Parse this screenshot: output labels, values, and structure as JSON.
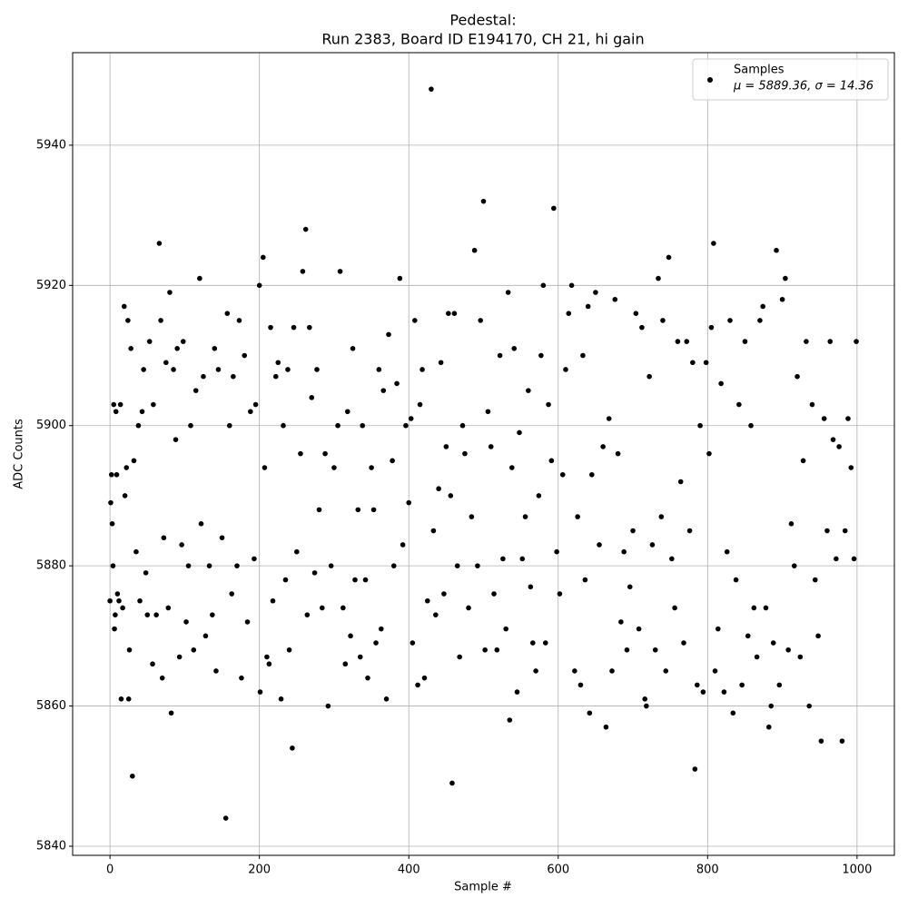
{
  "chart_data": {
    "type": "scatter",
    "title": "Pedestal:",
    "subtitle": "Run 2383, Board ID E194170, CH 21, hi gain",
    "xlabel": "Sample #",
    "ylabel": "ADC Counts",
    "annotation": "μ = 5889.36, σ = 14.36",
    "xlim": [
      -50,
      1050
    ],
    "ylim": [
      5838.7,
      5953.2
    ],
    "xticks": [
      0,
      200,
      400,
      600,
      800,
      1000
    ],
    "yticks": [
      5840,
      5860,
      5880,
      5900,
      5920,
      5940
    ],
    "grid": true,
    "legend": "upper right",
    "series": [
      {
        "name": "Samples",
        "color": "#000000",
        "x": [
          0,
          1,
          2,
          3,
          4,
          5,
          6,
          7,
          8,
          9,
          10,
          12,
          14,
          15,
          17,
          19,
          20,
          22,
          24,
          25,
          26,
          28,
          30,
          32,
          35,
          38,
          40,
          43,
          45,
          48,
          50,
          53,
          57,
          58,
          62,
          66,
          68,
          70,
          72,
          75,
          78,
          80,
          82,
          85,
          88,
          90,
          93,
          96,
          98,
          102,
          105,
          108,
          112,
          115,
          120,
          122,
          125,
          128,
          133,
          137,
          140,
          142,
          145,
          150,
          155,
          157,
          160,
          163,
          165,
          170,
          173,
          176,
          180,
          184,
          188,
          193,
          195,
          200,
          201,
          205,
          207,
          210,
          213,
          215,
          218,
          222,
          225,
          229,
          232,
          235,
          238,
          240,
          244,
          246,
          250,
          255,
          258,
          262,
          264,
          267,
          270,
          274,
          277,
          280,
          284,
          288,
          292,
          296,
          300,
          305,
          308,
          312,
          315,
          318,
          322,
          325,
          328,
          332,
          335,
          338,
          342,
          345,
          350,
          353,
          356,
          360,
          363,
          366,
          370,
          373,
          378,
          380,
          384,
          388,
          392,
          396,
          400,
          403,
          405,
          408,
          412,
          415,
          418,
          421,
          425,
          430,
          433,
          436,
          440,
          443,
          447,
          450,
          453,
          456,
          458,
          461,
          465,
          468,
          472,
          475,
          480,
          484,
          488,
          492,
          496,
          500,
          502,
          506,
          510,
          514,
          518,
          522,
          526,
          530,
          533,
          535,
          538,
          541,
          545,
          548,
          552,
          556,
          560,
          563,
          566,
          570,
          574,
          577,
          580,
          583,
          587,
          591,
          594,
          598,
          602,
          606,
          610,
          614,
          618,
          622,
          626,
          630,
          633,
          636,
          640,
          642,
          645,
          650,
          655,
          660,
          664,
          668,
          672,
          676,
          680,
          684,
          688,
          692,
          696,
          700,
          704,
          708,
          712,
          716,
          718,
          722,
          726,
          730,
          734,
          738,
          740,
          744,
          748,
          752,
          756,
          760,
          764,
          768,
          772,
          776,
          780,
          783,
          786,
          790,
          794,
          798,
          802,
          805,
          808,
          810,
          814,
          818,
          822,
          826,
          830,
          834,
          838,
          842,
          846,
          850,
          854,
          858,
          862,
          866,
          870,
          874,
          878,
          882,
          885,
          888,
          892,
          896,
          900,
          904,
          908,
          912,
          916,
          920,
          924,
          928,
          932,
          936,
          940,
          944,
          948,
          952,
          956,
          960,
          964,
          968,
          972,
          976,
          980,
          984,
          988,
          992,
          996,
          999
        ],
        "values": [
          5875,
          5889,
          5893,
          5886,
          5880,
          5903,
          5871,
          5873,
          5902,
          5893,
          5876,
          5875,
          5903,
          5861,
          5874,
          5917,
          5890,
          5894,
          5915,
          5861,
          5868,
          5911,
          5850,
          5895,
          5882,
          5900,
          5875,
          5902,
          5908,
          5879,
          5873,
          5912,
          5866,
          5903,
          5873,
          5926,
          5915,
          5864,
          5884,
          5909,
          5874,
          5919,
          5859,
          5908,
          5898,
          5911,
          5867,
          5883,
          5912,
          5872,
          5880,
          5900,
          5868,
          5905,
          5921,
          5886,
          5907,
          5870,
          5880,
          5873,
          5911,
          5865,
          5908,
          5884,
          5844,
          5916,
          5900,
          5876,
          5907,
          5880,
          5915,
          5864,
          5910,
          5872,
          5902,
          5881,
          5903,
          5920,
          5862,
          5924,
          5894,
          5867,
          5866,
          5914,
          5875,
          5907,
          5909,
          5861,
          5900,
          5878,
          5908,
          5868,
          5854,
          5914,
          5882,
          5896,
          5922,
          5928,
          5873,
          5914,
          5904,
          5879,
          5908,
          5888,
          5874,
          5896,
          5860,
          5880,
          5894,
          5900,
          5922,
          5874,
          5866,
          5902,
          5870,
          5911,
          5878,
          5888,
          5867,
          5900,
          5878,
          5864,
          5894,
          5888,
          5869,
          5908,
          5871,
          5905,
          5861,
          5913,
          5895,
          5880,
          5906,
          5921,
          5883,
          5900,
          5889,
          5901,
          5869,
          5915,
          5863,
          5903,
          5908,
          5864,
          5875,
          5948,
          5885,
          5873,
          5891,
          5909,
          5876,
          5897,
          5916,
          5890,
          5849,
          5916,
          5880,
          5867,
          5900,
          5896,
          5874,
          5887,
          5925,
          5880,
          5915,
          5932,
          5868,
          5902,
          5897,
          5876,
          5868,
          5910,
          5881,
          5871,
          5919,
          5858,
          5894,
          5911,
          5862,
          5899,
          5881,
          5887,
          5905,
          5877,
          5869,
          5865,
          5890,
          5910,
          5920,
          5869,
          5903,
          5895,
          5931,
          5882,
          5876,
          5893,
          5908,
          5916,
          5920,
          5865,
          5887,
          5863,
          5910,
          5878,
          5917,
          5859,
          5893,
          5919,
          5883,
          5897,
          5857,
          5901,
          5865,
          5918,
          5896,
          5872,
          5882,
          5868,
          5877,
          5885,
          5916,
          5871,
          5914,
          5861,
          5860,
          5907,
          5883,
          5868,
          5921,
          5887,
          5915,
          5865,
          5924,
          5881,
          5874,
          5912,
          5892,
          5869,
          5912,
          5885,
          5909,
          5851,
          5863,
          5900,
          5862,
          5909,
          5896,
          5914,
          5926,
          5865,
          5871,
          5906,
          5862,
          5882,
          5915,
          5859,
          5878,
          5903,
          5863,
          5912,
          5870,
          5900,
          5874,
          5867,
          5915,
          5917,
          5874,
          5857,
          5860,
          5869,
          5925,
          5863,
          5918,
          5921,
          5868,
          5886,
          5880,
          5907,
          5867,
          5895,
          5912,
          5860,
          5903,
          5878,
          5870,
          5855,
          5901,
          5885,
          5912,
          5898,
          5881,
          5897,
          5855,
          5885,
          5901,
          5894,
          5881,
          5912
        ]
      }
    ]
  }
}
